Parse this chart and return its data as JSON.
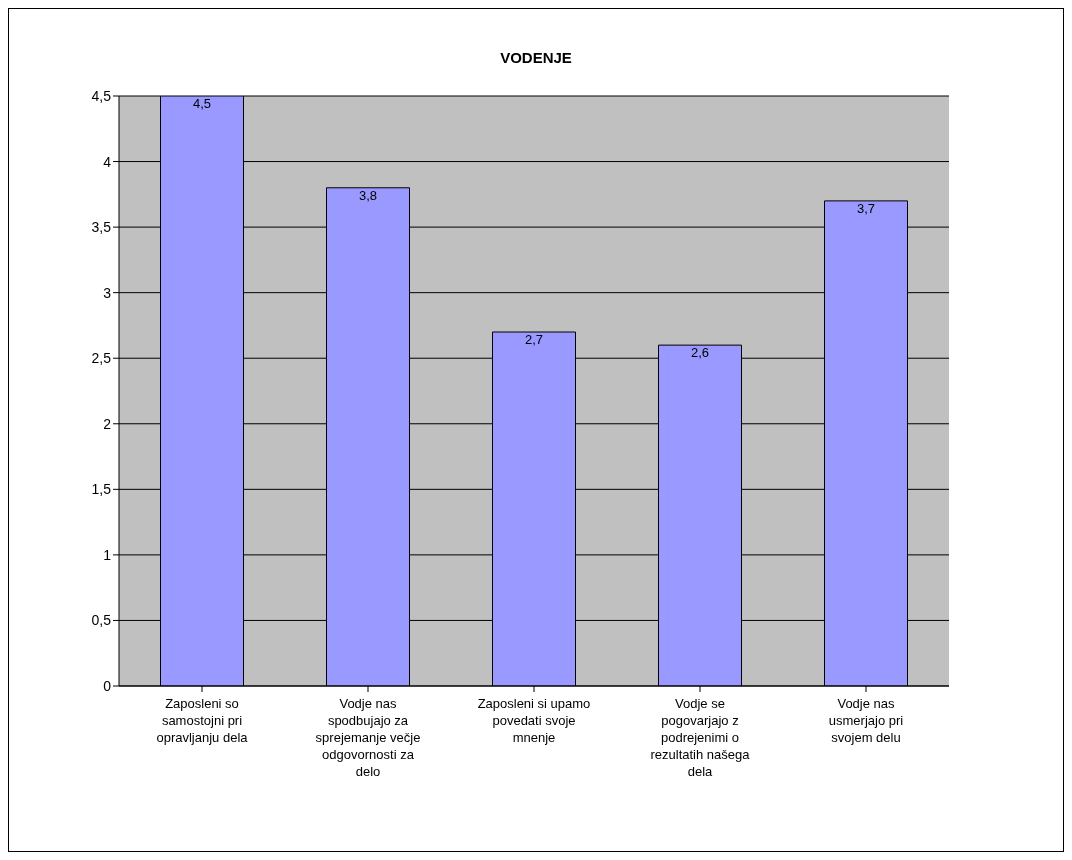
{
  "chart_data": {
    "type": "bar",
    "title": "VODENJE",
    "categories": [
      "Zaposleni  so samostojni pri opravljanju dela",
      "Vodje nas spodbujajo za sprejemanje večje odgovornosti za delo",
      "Zaposleni si upamo povedati svoje mnenje",
      "Vodje se pogovarjajo z podrejenimi o rezultatih našega dela",
      "Vodje nas usmerjajo pri svojem delu"
    ],
    "values": [
      4.5,
      3.8,
      2.7,
      2.6,
      3.7
    ],
    "value_labels": [
      "4,5",
      "3,8",
      "2,7",
      "2,6",
      "3,7"
    ],
    "color": "#9999ff",
    "ylim": [
      0,
      4.5
    ],
    "yticks": [
      {
        "value": 0,
        "label": "0"
      },
      {
        "value": 0.5,
        "label": "0,5"
      },
      {
        "value": 1,
        "label": "1"
      },
      {
        "value": 1.5,
        "label": "1,5"
      },
      {
        "value": 2,
        "label": "2"
      },
      {
        "value": 2.5,
        "label": "2,5"
      },
      {
        "value": 3,
        "label": "3"
      },
      {
        "value": 3.5,
        "label": "3,5"
      },
      {
        "value": 4,
        "label": "4"
      },
      {
        "value": 4.5,
        "label": "4,5"
      }
    ],
    "grid": "y",
    "legend": false
  }
}
